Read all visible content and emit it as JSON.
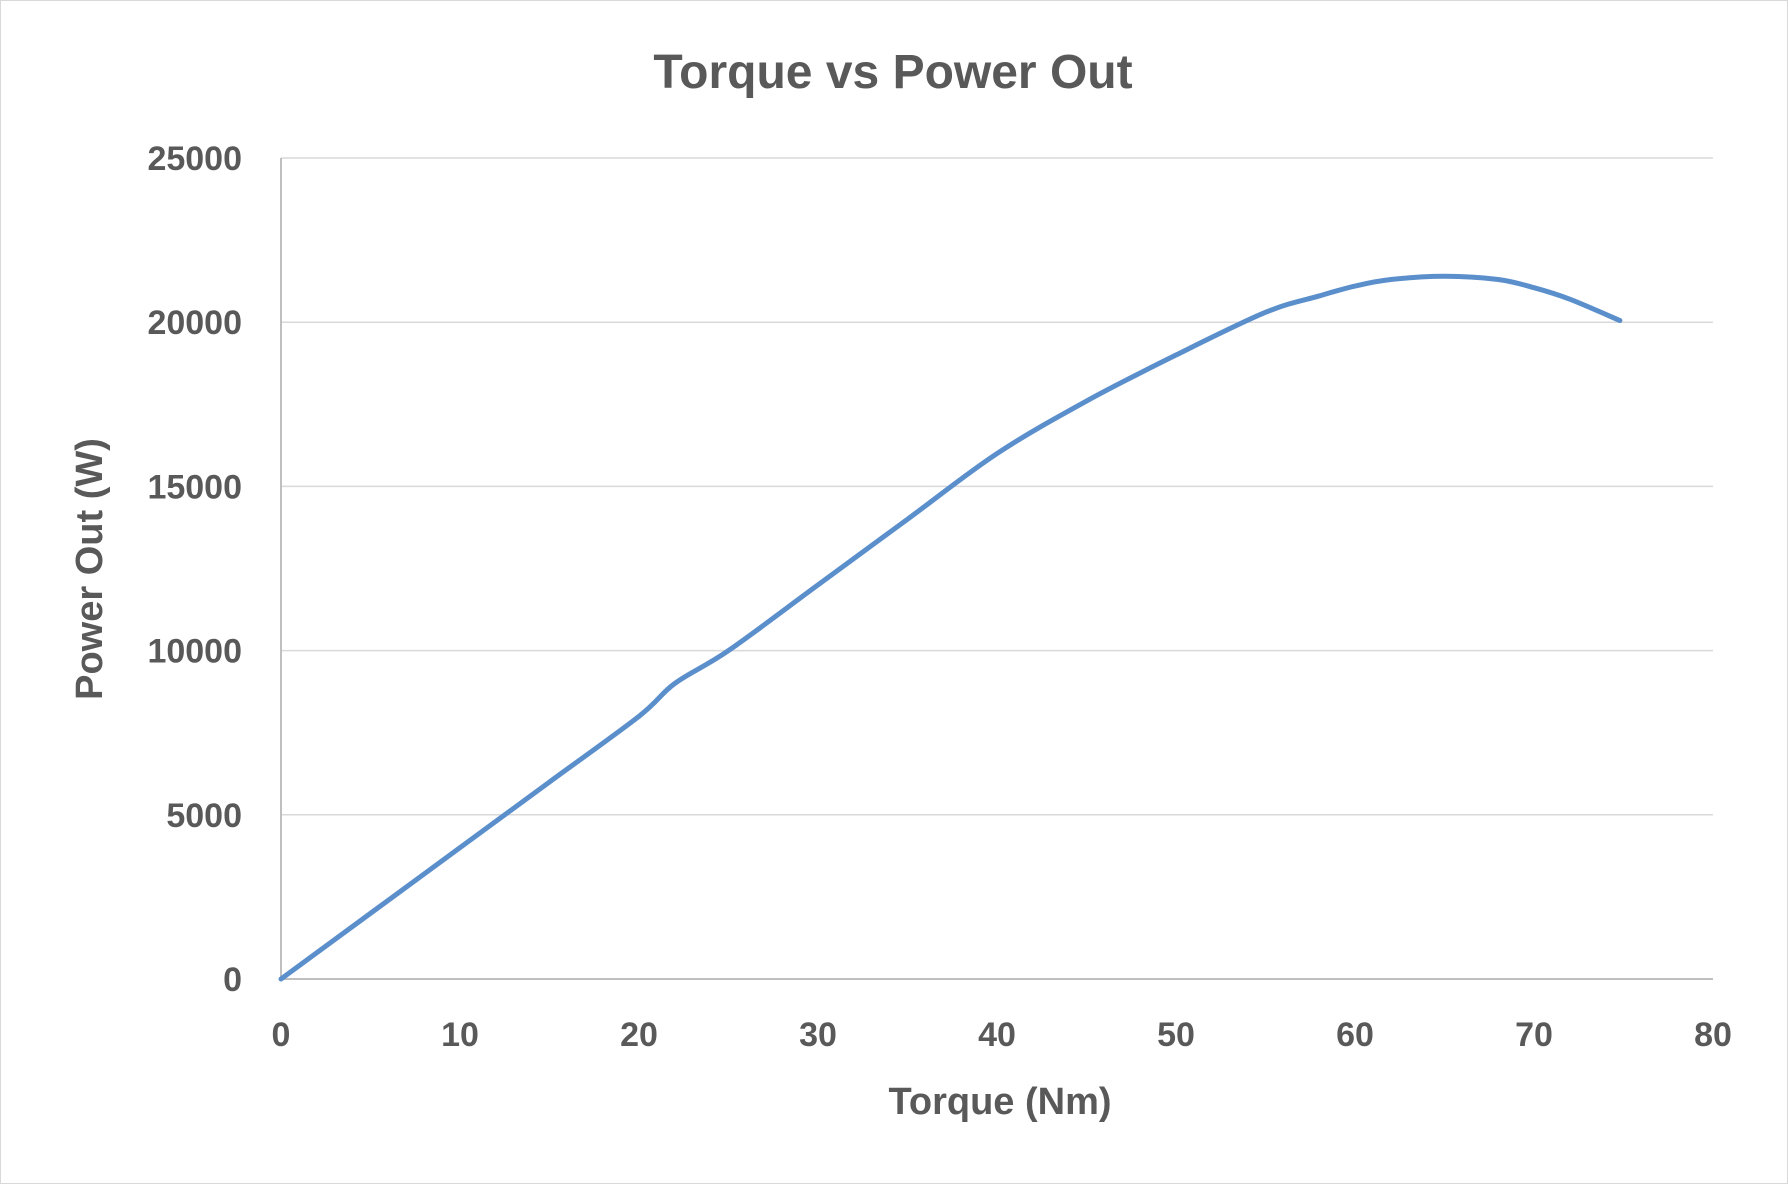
{
  "chart_data": {
    "type": "line",
    "title": "Torque vs Power Out",
    "xlabel": "Torque (Nm)",
    "ylabel": "Power Out (W)",
    "xlim": [
      0,
      80
    ],
    "ylim": [
      0,
      25000
    ],
    "x_ticks": [
      "0",
      "10",
      "20",
      "30",
      "40",
      "50",
      "60",
      "70",
      "80"
    ],
    "y_ticks": [
      "0",
      "5000",
      "10000",
      "15000",
      "20000",
      "25000"
    ],
    "grid": true,
    "legend": "none",
    "series": [
      {
        "color": "#5b8fcc",
        "x": [
          0,
          5,
          10,
          15,
          20,
          22,
          25,
          30,
          35,
          40,
          45,
          50,
          55,
          58,
          60,
          62,
          65,
          68,
          70,
          72,
          74.8
        ],
        "values": [
          0,
          2000,
          4000,
          6000,
          8000,
          9000,
          10000,
          12000,
          14000,
          16000,
          17600,
          19000,
          20300,
          20800,
          21100,
          21300,
          21400,
          21300,
          21050,
          20700,
          20050
        ]
      }
    ]
  }
}
